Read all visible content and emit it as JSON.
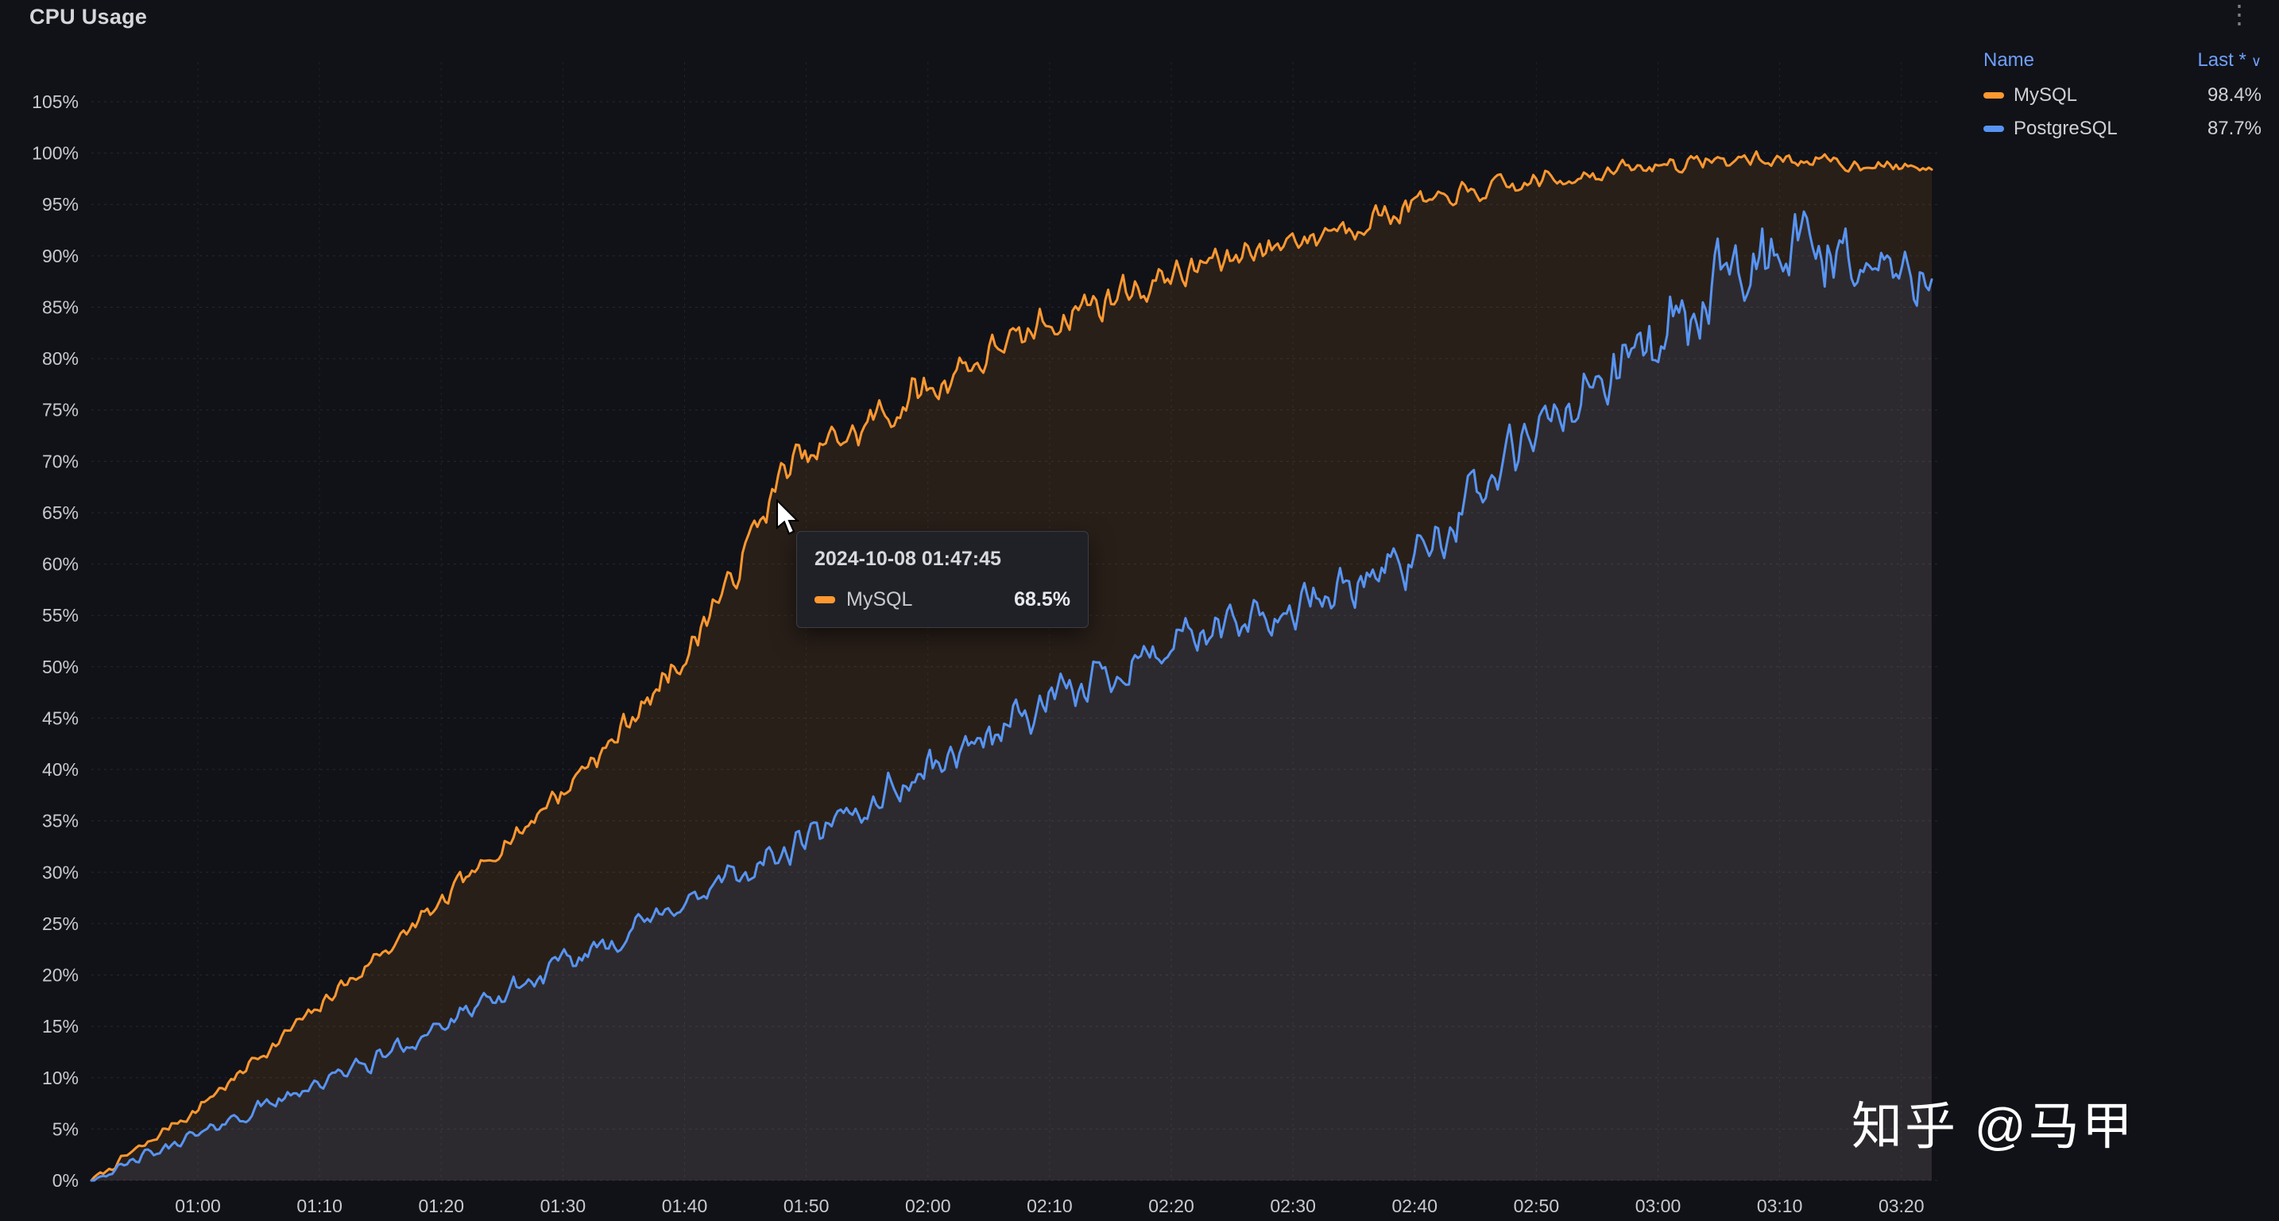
{
  "panel": {
    "title": "CPU Usage"
  },
  "icons": {
    "kebab": "⋮",
    "sort_caret": "∨"
  },
  "legend": {
    "name_header": "Name",
    "last_header": "Last *",
    "rows": [
      {
        "name": "MySQL",
        "last": "98.4%",
        "color": "#ff9830"
      },
      {
        "name": "PostgreSQL",
        "last": "87.7%",
        "color": "#5794f2"
      }
    ]
  },
  "tooltip": {
    "timestamp": "2024-10-08 01:47:45",
    "rows": [
      {
        "name": "MySQL",
        "value": "68.5%",
        "color": "#ff9830"
      }
    ]
  },
  "watermark": "知乎 @马甲",
  "chart_data": {
    "type": "line",
    "title": "CPU Usage",
    "x_unit": "time (HH:MM)",
    "x_domain_minutes": [
      51.25,
      202.5
    ],
    "x_tick_minutes": [
      60,
      70,
      80,
      90,
      100,
      110,
      120,
      130,
      140,
      150,
      160,
      170,
      180,
      190,
      200
    ],
    "x_tick_labels": [
      "01:00",
      "01:10",
      "01:20",
      "01:30",
      "01:40",
      "01:50",
      "02:00",
      "02:10",
      "02:20",
      "02:30",
      "02:40",
      "02:50",
      "03:00",
      "03:10",
      "03:20"
    ],
    "y_domain": [
      0,
      105
    ],
    "y_tick_step": 5,
    "y_tick_labels": [
      "0%",
      "5%",
      "10%",
      "15%",
      "20%",
      "25%",
      "30%",
      "35%",
      "40%",
      "45%",
      "50%",
      "55%",
      "60%",
      "65%",
      "70%",
      "75%",
      "80%",
      "85%",
      "90%",
      "95%",
      "100%",
      "105%"
    ],
    "grid": true,
    "legend_position": "top-right",
    "hover": {
      "time": "2024-10-08 01:47:45",
      "t_minutes": 107.75,
      "series": "MySQL",
      "value_pct": 68.5
    },
    "series": [
      {
        "name": "MySQL",
        "color": "#ff9830",
        "last_value": 98.4,
        "fill_opacity": 0.1,
        "seed": 7,
        "keypoints": [
          [
            51.25,
            0
          ],
          [
            55,
            3
          ],
          [
            60,
            7
          ],
          [
            65,
            12
          ],
          [
            70,
            17
          ],
          [
            75,
            22
          ],
          [
            80,
            27
          ],
          [
            85,
            32.5
          ],
          [
            90,
            38
          ],
          [
            95,
            44
          ],
          [
            100,
            51
          ],
          [
            105,
            61
          ],
          [
            107.75,
            68.5
          ],
          [
            110,
            70.5
          ],
          [
            115,
            73.5
          ],
          [
            120,
            77
          ],
          [
            125,
            80.5
          ],
          [
            130,
            83.5
          ],
          [
            135,
            86
          ],
          [
            140,
            88
          ],
          [
            145,
            90
          ],
          [
            150,
            91.5
          ],
          [
            155,
            93
          ],
          [
            160,
            95
          ],
          [
            165,
            96.2
          ],
          [
            170,
            97.2
          ],
          [
            175,
            98
          ],
          [
            180,
            98.8
          ],
          [
            185,
            99.3
          ],
          [
            190,
            99.4
          ],
          [
            195,
            99
          ],
          [
            200,
            98.7
          ],
          [
            202.5,
            98.4
          ]
        ],
        "noise_amplitude": [
          [
            51.25,
            0.3
          ],
          [
            80,
            0.9
          ],
          [
            100,
            1.4
          ],
          [
            115,
            1.7
          ],
          [
            135,
            1.6
          ],
          [
            155,
            1.2
          ],
          [
            175,
            0.8
          ],
          [
            202.5,
            0.6
          ]
        ]
      },
      {
        "name": "PostgreSQL",
        "color": "#5794f2",
        "last_value": 87.7,
        "fill_opacity": 0.1,
        "seed": 42,
        "keypoints": [
          [
            51.25,
            0
          ],
          [
            55,
            2
          ],
          [
            60,
            4.5
          ],
          [
            65,
            7
          ],
          [
            70,
            9.5
          ],
          [
            75,
            12
          ],
          [
            80,
            15
          ],
          [
            85,
            18
          ],
          [
            90,
            21
          ],
          [
            95,
            24
          ],
          [
            100,
            27
          ],
          [
            105,
            30
          ],
          [
            110,
            33
          ],
          [
            115,
            36.5
          ],
          [
            120,
            40
          ],
          [
            125,
            43.5
          ],
          [
            130,
            46.5
          ],
          [
            135,
            49.5
          ],
          [
            140,
            52
          ],
          [
            145,
            54
          ],
          [
            150,
            55.5
          ],
          [
            155,
            58
          ],
          [
            160,
            61
          ],
          [
            163,
            64
          ],
          [
            166,
            68
          ],
          [
            170,
            72.5
          ],
          [
            175,
            77.5
          ],
          [
            180,
            82
          ],
          [
            184,
            85.5
          ],
          [
            187,
            88.5
          ],
          [
            190,
            89.5
          ],
          [
            193,
            91
          ],
          [
            196,
            89.5
          ],
          [
            199,
            88.5
          ],
          [
            202.5,
            87.7
          ]
        ],
        "noise_amplitude": [
          [
            51.25,
            0.4
          ],
          [
            70,
            0.8
          ],
          [
            90,
            1.1
          ],
          [
            110,
            1.4
          ],
          [
            130,
            1.8
          ],
          [
            150,
            2.1
          ],
          [
            163,
            2.5
          ],
          [
            170,
            2.9
          ],
          [
            180,
            3.4
          ],
          [
            188,
            4.0
          ],
          [
            195,
            3.6
          ],
          [
            202.5,
            3.0
          ]
        ]
      }
    ]
  }
}
